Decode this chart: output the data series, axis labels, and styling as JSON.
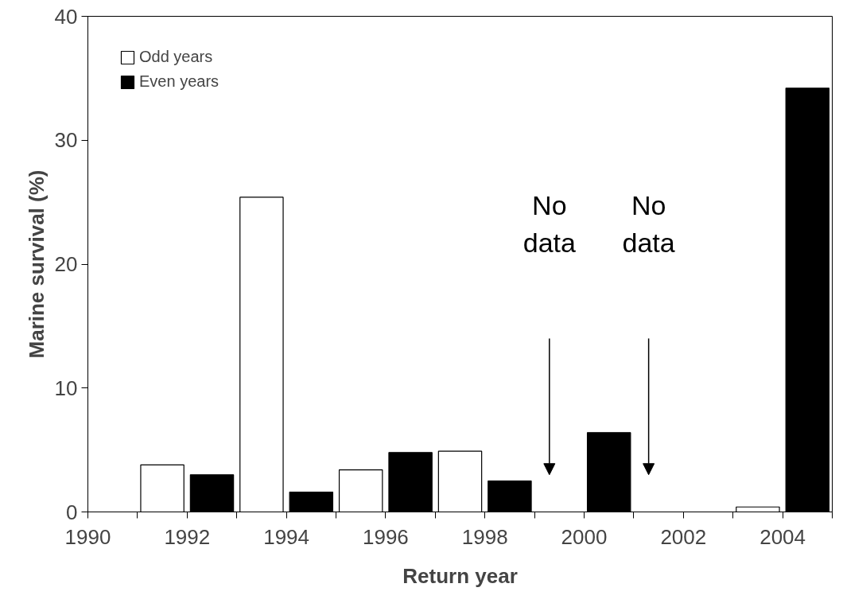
{
  "chart_data": {
    "type": "bar",
    "xlabel": "Return year",
    "ylabel": "Marine survival (%)",
    "xlim": [
      1990,
      2005
    ],
    "ylim": [
      0,
      40
    ],
    "yticks": [
      0,
      10,
      20,
      30,
      40
    ],
    "xticks": [
      1990,
      {
        "value": 1991,
        "label": null
      },
      1992,
      {
        "value": 1993,
        "label": null
      },
      1994,
      {
        "value": 1995,
        "label": null
      },
      1996,
      {
        "value": 1997,
        "label": null
      },
      1998,
      {
        "value": 1999,
        "label": null
      },
      2000,
      {
        "value": 2001,
        "label": null
      },
      2002,
      {
        "value": 2003,
        "label": null
      },
      2004,
      {
        "value": 2005,
        "label": null
      }
    ],
    "series": [
      {
        "name": "Odd years",
        "color": "#ffffff",
        "x": [
          1991.5,
          1993.5,
          1995.5,
          1997.5,
          1999.5,
          2001.5,
          2003.5
        ],
        "values": [
          3.8,
          25.4,
          3.4,
          4.9,
          null,
          null,
          0.4
        ]
      },
      {
        "name": "Even years",
        "color": "#000000",
        "x": [
          1992.5,
          1994.5,
          1996.5,
          1998.5,
          2000.5,
          2002.5,
          2004.5
        ],
        "values": [
          3.0,
          1.6,
          4.8,
          2.5,
          6.4,
          null,
          34.2
        ]
      }
    ],
    "annotations": [
      "No\ndata",
      "No\ndata"
    ],
    "legend": "top left",
    "grid": false
  }
}
